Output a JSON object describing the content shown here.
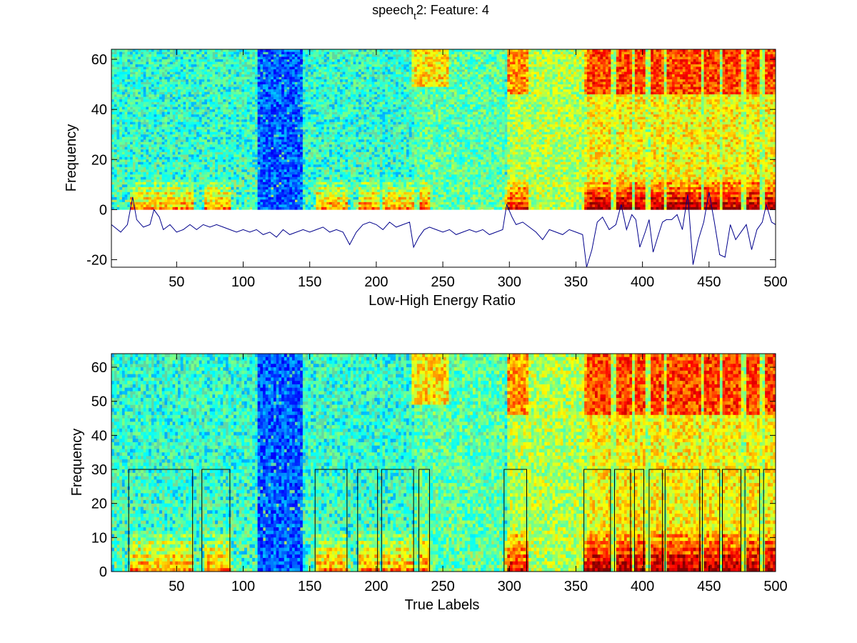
{
  "figure": {
    "title_main": "speech",
    "title_sub": "t",
    "title_rest": "2: Feature: 4"
  },
  "chart_data": [
    {
      "type": "heatmap",
      "subtype": "spectrogram with overlaid line",
      "colormap": "jet",
      "xlabel": "Low-High Energy Ratio",
      "ylabel": "Frequency",
      "xlim": [
        1,
        500
      ],
      "ylim": [
        -23,
        64
      ],
      "xticks": [
        50,
        100,
        150,
        200,
        250,
        300,
        350,
        400,
        450,
        500
      ],
      "yticks": [
        -20,
        0,
        20,
        40,
        60
      ],
      "spectrogram_y_range": [
        0,
        64
      ],
      "line_color": "#00008b",
      "line_points": [
        [
          1,
          -6
        ],
        [
          8,
          -9
        ],
        [
          13,
          -6
        ],
        [
          17,
          5
        ],
        [
          20,
          -4
        ],
        [
          25,
          -7
        ],
        [
          30,
          -6
        ],
        [
          33,
          0
        ],
        [
          37,
          -3
        ],
        [
          40,
          -8
        ],
        [
          45,
          -6
        ],
        [
          50,
          -9
        ],
        [
          55,
          -8
        ],
        [
          60,
          -6
        ],
        [
          65,
          -8
        ],
        [
          70,
          -6
        ],
        [
          75,
          -7
        ],
        [
          80,
          -6
        ],
        [
          85,
          -7
        ],
        [
          90,
          -8
        ],
        [
          95,
          -9
        ],
        [
          100,
          -8
        ],
        [
          105,
          -9
        ],
        [
          110,
          -8
        ],
        [
          115,
          -10
        ],
        [
          120,
          -9
        ],
        [
          125,
          -11
        ],
        [
          130,
          -8
        ],
        [
          135,
          -10
        ],
        [
          140,
          -9
        ],
        [
          145,
          -8
        ],
        [
          150,
          -9
        ],
        [
          155,
          -8
        ],
        [
          160,
          -7
        ],
        [
          165,
          -9
        ],
        [
          170,
          -8
        ],
        [
          175,
          -9
        ],
        [
          180,
          -14
        ],
        [
          185,
          -9
        ],
        [
          190,
          -6
        ],
        [
          195,
          -5
        ],
        [
          200,
          -6
        ],
        [
          205,
          -8
        ],
        [
          210,
          -5
        ],
        [
          215,
          -7
        ],
        [
          220,
          -6
        ],
        [
          225,
          -5
        ],
        [
          228,
          -15
        ],
        [
          232,
          -11
        ],
        [
          236,
          -8
        ],
        [
          240,
          -7
        ],
        [
          245,
          -8
        ],
        [
          250,
          -9
        ],
        [
          255,
          -8
        ],
        [
          260,
          -10
        ],
        [
          265,
          -9
        ],
        [
          270,
          -8
        ],
        [
          275,
          -9
        ],
        [
          280,
          -8
        ],
        [
          285,
          -10
        ],
        [
          290,
          -9
        ],
        [
          295,
          -8
        ],
        [
          298,
          2
        ],
        [
          302,
          -3
        ],
        [
          305,
          -6
        ],
        [
          310,
          -5
        ],
        [
          315,
          -7
        ],
        [
          320,
          -9
        ],
        [
          325,
          -12
        ],
        [
          330,
          -8
        ],
        [
          335,
          -9
        ],
        [
          340,
          -10
        ],
        [
          345,
          -8
        ],
        [
          350,
          -9
        ],
        [
          355,
          -10
        ],
        [
          358,
          -23
        ],
        [
          362,
          -16
        ],
        [
          366,
          -5
        ],
        [
          370,
          -3
        ],
        [
          375,
          -8
        ],
        [
          380,
          -6
        ],
        [
          384,
          2
        ],
        [
          388,
          -8
        ],
        [
          392,
          -2
        ],
        [
          395,
          -4
        ],
        [
          398,
          -15
        ],
        [
          402,
          -9
        ],
        [
          405,
          -4
        ],
        [
          408,
          -17
        ],
        [
          412,
          -10
        ],
        [
          415,
          -5
        ],
        [
          418,
          -4
        ],
        [
          422,
          -4
        ],
        [
          426,
          -2
        ],
        [
          430,
          -8
        ],
        [
          434,
          6
        ],
        [
          438,
          -22
        ],
        [
          442,
          -12
        ],
        [
          446,
          -5
        ],
        [
          450,
          7
        ],
        [
          454,
          -5
        ],
        [
          458,
          -18
        ],
        [
          462,
          -19
        ],
        [
          466,
          -6
        ],
        [
          470,
          -12
        ],
        [
          474,
          -9
        ],
        [
          478,
          -6
        ],
        [
          482,
          -16
        ],
        [
          486,
          -8
        ],
        [
          490,
          -5
        ],
        [
          493,
          2
        ],
        [
          497,
          -5
        ],
        [
          500,
          -6
        ]
      ]
    },
    {
      "type": "heatmap",
      "subtype": "spectrogram with overlaid label pulses",
      "colormap": "jet",
      "xlabel": "True Labels",
      "ylabel": "Frequency",
      "xlim": [
        1,
        500
      ],
      "ylim": [
        0,
        64
      ],
      "xticks": [
        50,
        100,
        150,
        200,
        250,
        300,
        350,
        400,
        450,
        500
      ],
      "yticks": [
        0,
        10,
        20,
        30,
        40,
        50,
        60
      ],
      "label_high": 30,
      "label_low": 0,
      "line_color": "#000000",
      "label_segments": [
        [
          15,
          62
        ],
        [
          70,
          90
        ],
        [
          155,
          178
        ],
        [
          187,
          201
        ],
        [
          205,
          228
        ],
        [
          233,
          240
        ],
        [
          297,
          313
        ],
        [
          357,
          376
        ],
        [
          380,
          391
        ],
        [
          395,
          401
        ],
        [
          406,
          415
        ],
        [
          418,
          443
        ],
        [
          446,
          458
        ],
        [
          461,
          474
        ],
        [
          478,
          488
        ],
        [
          492,
          500
        ]
      ]
    }
  ]
}
